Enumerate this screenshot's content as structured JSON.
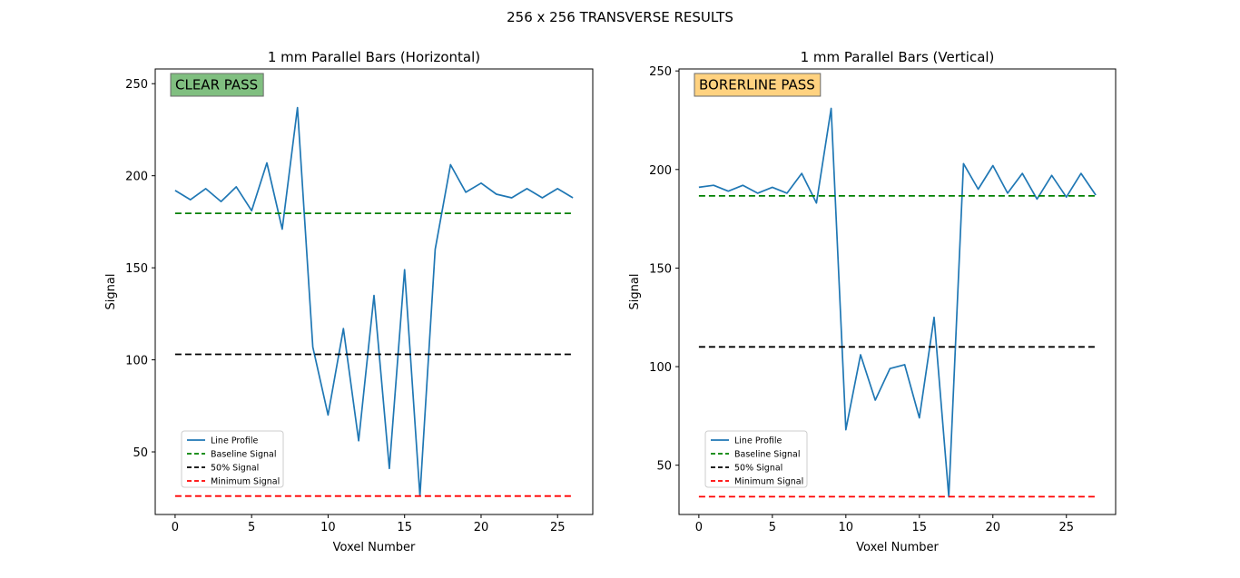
{
  "figure": {
    "suptitle": "256 x 256 TRANSVERSE RESULTS"
  },
  "chart_data": [
    {
      "type": "line",
      "title": "1 mm Parallel Bars (Horizontal)",
      "xlabel": "Voxel Number",
      "ylabel": "Signal",
      "xlim": [
        -1.3,
        27.3
      ],
      "ylim": [
        16,
        258
      ],
      "xticks": [
        0,
        5,
        10,
        15,
        20,
        25
      ],
      "yticks": [
        50,
        100,
        150,
        200,
        250
      ],
      "badge": {
        "text": "CLEAR PASS",
        "fill": "#80bf80",
        "edge": "#6a6a6a"
      },
      "legend_position": "lower-left",
      "series": [
        {
          "name": "Line Profile",
          "color": "#1f77b4",
          "style": "solid",
          "x": [
            0,
            1,
            2,
            3,
            4,
            5,
            6,
            7,
            8,
            9,
            10,
            11,
            12,
            13,
            14,
            15,
            16,
            17,
            18,
            19,
            20,
            21,
            22,
            23,
            24,
            25,
            26
          ],
          "y": [
            192,
            187,
            193,
            186,
            194,
            181,
            207,
            171,
            237,
            107,
            70,
            117,
            56,
            135,
            41,
            149,
            26,
            160,
            206,
            191,
            196,
            190,
            188,
            193,
            188,
            193,
            188
          ]
        },
        {
          "name": "Baseline Signal",
          "color": "#008000",
          "style": "dashed",
          "x": [
            0,
            26
          ],
          "y": [
            179.6,
            179.6
          ]
        },
        {
          "name": "50% Signal",
          "color": "#000000",
          "style": "dashed",
          "x": [
            0,
            26
          ],
          "y": [
            103,
            103
          ]
        },
        {
          "name": "Minimum Signal",
          "color": "#ff0000",
          "style": "dashed",
          "x": [
            0,
            26
          ],
          "y": [
            26,
            26
          ]
        }
      ]
    },
    {
      "type": "line",
      "title": "1 mm Parallel Bars (Vertical)",
      "xlabel": "Voxel Number",
      "ylabel": "Signal",
      "xlim": [
        -1.35,
        28.35
      ],
      "ylim": [
        25,
        251
      ],
      "xticks": [
        0,
        5,
        10,
        15,
        20,
        25
      ],
      "yticks": [
        50,
        100,
        150,
        200,
        250
      ],
      "badge": {
        "text": "BORERLINE PASS",
        "fill": "#ffd280",
        "edge": "#6a6a6a"
      },
      "legend_position": "lower-left",
      "series": [
        {
          "name": "Line Profile",
          "color": "#1f77b4",
          "style": "solid",
          "x": [
            0,
            1,
            2,
            3,
            4,
            5,
            6,
            7,
            8,
            9,
            10,
            11,
            12,
            13,
            14,
            15,
            16,
            17,
            18,
            19,
            20,
            21,
            22,
            23,
            24,
            25,
            26,
            27
          ],
          "y": [
            191,
            192,
            189,
            192,
            188,
            191,
            188,
            198,
            183,
            231,
            68,
            106,
            83,
            99,
            101,
            74,
            125,
            34,
            203,
            190,
            202,
            188,
            198,
            185,
            197,
            186,
            198,
            187
          ]
        },
        {
          "name": "Baseline Signal",
          "color": "#008000",
          "style": "dashed",
          "x": [
            0,
            27
          ],
          "y": [
            186.6,
            186.6
          ]
        },
        {
          "name": "50% Signal",
          "color": "#000000",
          "style": "dashed",
          "x": [
            0,
            27
          ],
          "y": [
            110,
            110
          ]
        },
        {
          "name": "Minimum Signal",
          "color": "#ff0000",
          "style": "dashed",
          "x": [
            0,
            27
          ],
          "y": [
            34,
            34
          ]
        }
      ]
    }
  ]
}
